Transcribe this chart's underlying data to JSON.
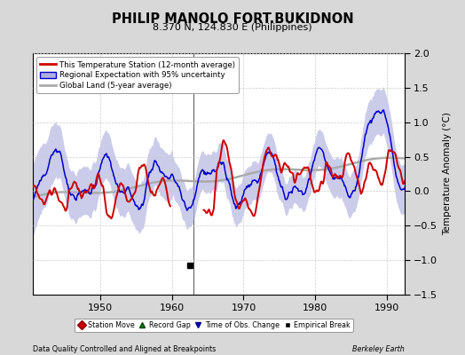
{
  "title": "PHILIP MANOLO FORT.BUKIDNON",
  "subtitle": "8.370 N, 124.830 E (Philippines)",
  "ylabel": "Temperature Anomaly (°C)",
  "xlabel_left": "Data Quality Controlled and Aligned at Breakpoints",
  "xlabel_right": "Berkeley Earth",
  "ylim": [
    -1.5,
    2.0
  ],
  "xlim": [
    1940.5,
    1992.5
  ],
  "yticks": [
    -1.5,
    -1.0,
    -0.5,
    0.0,
    0.5,
    1.0,
    1.5,
    2.0
  ],
  "xticks": [
    1950,
    1960,
    1970,
    1980,
    1990
  ],
  "bg_color": "#d8d8d8",
  "plot_bg_color": "#ffffff",
  "red_color": "#cc0000",
  "blue_color": "#0000cc",
  "blue_fill_color": "#b0b0e0",
  "gray_color": "#aaaaaa",
  "empirical_break_year": 1962.5,
  "empirical_break_value": -1.08,
  "legend_items": [
    "This Temperature Station (12-month average)",
    "Regional Expectation with 95% uncertainty",
    "Global Land (5-year average)"
  ],
  "bottom_legend": [
    "Station Move",
    "Record Gap",
    "Time of Obs. Change",
    "Empirical Break"
  ]
}
